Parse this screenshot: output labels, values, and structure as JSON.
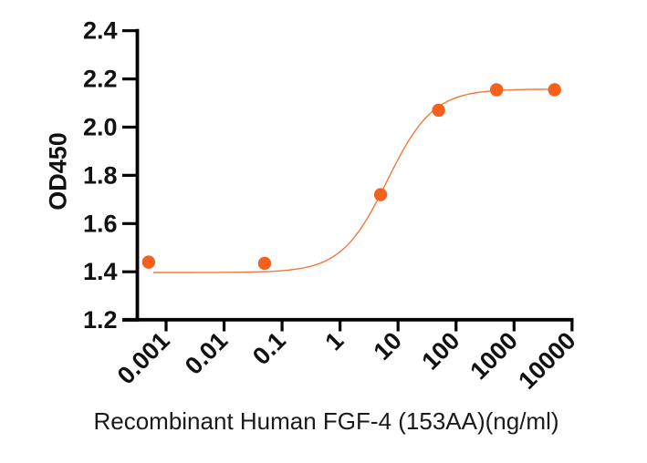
{
  "chart_data": {
    "type": "scatter",
    "subtype": "dose-response-curve",
    "title": "",
    "xlabel": "Recombinant Human FGF-4 (153AA)(ng/ml)",
    "ylabel": "OD450",
    "x_scale": "log10",
    "x_tick_labels": [
      "0.001",
      "0.01",
      "0.1",
      "1",
      "10",
      "100",
      "1000",
      "10000"
    ],
    "x_tick_values": [
      0.001,
      0.01,
      0.1,
      1,
      10,
      100,
      1000,
      10000
    ],
    "y_tick_labels": [
      "1.2",
      "1.4",
      "1.6",
      "1.8",
      "2.0",
      "2.2",
      "2.4"
    ],
    "y_tick_values": [
      1.2,
      1.4,
      1.6,
      1.8,
      2.0,
      2.2,
      2.4
    ],
    "ylim": [
      1.2,
      2.4
    ],
    "xlim_log10": [
      -3.58,
      4.02
    ],
    "grid": "off",
    "legend": "none",
    "points": [
      {
        "x": 0.0005,
        "y": 1.44
      },
      {
        "x": 0.05,
        "y": 1.435
      },
      {
        "x": 5,
        "y": 1.72
      },
      {
        "x": 50,
        "y": 2.07
      },
      {
        "x": 500,
        "y": 2.155
      },
      {
        "x": 5000,
        "y": 2.155
      }
    ],
    "fit_curve": {
      "model": "4PL",
      "bottom": 1.397,
      "top": 2.158,
      "ec50": 6.5,
      "hill": 1.1,
      "x_start": 0.0006,
      "x_end": 5070
    },
    "colors": {
      "marker": "#F4611E",
      "curve": "#F0793F",
      "axis": "#000000",
      "text": "#111111"
    }
  }
}
